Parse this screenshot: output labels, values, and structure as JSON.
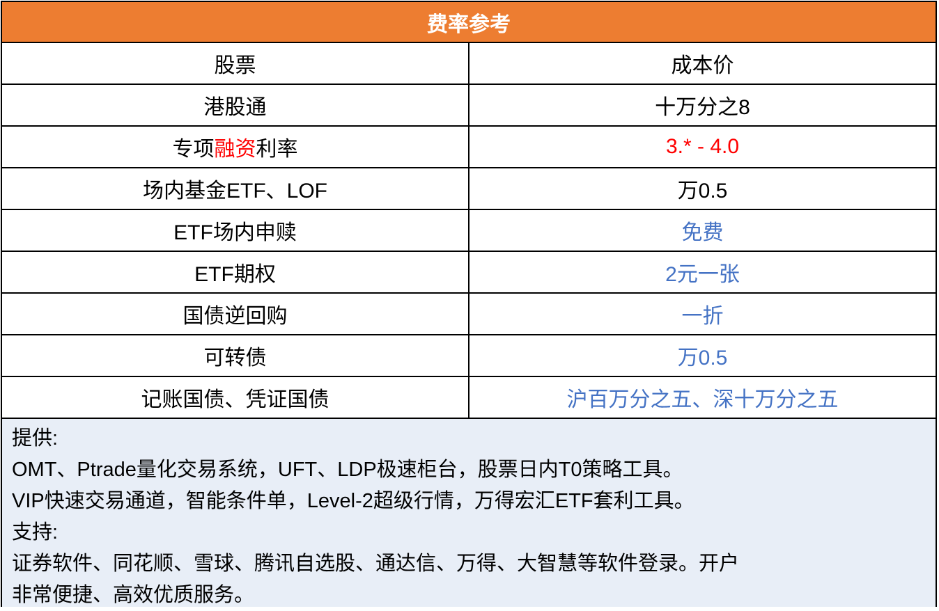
{
  "title": "费率参考",
  "header": {
    "col1": "股票",
    "col2": "成本价"
  },
  "rows": [
    {
      "name": "港股通",
      "value": "十万分之8",
      "value_color": "black"
    },
    {
      "name_parts": [
        "专项",
        "融资",
        "利率"
      ],
      "value": "3.* - 4.0",
      "value_color": "red"
    },
    {
      "name": "场内基金ETF、LOF",
      "value": "万0.5",
      "value_color": "black"
    },
    {
      "name": "ETF场内申赎",
      "value": "免费",
      "value_color": "blue"
    },
    {
      "name": "ETF期权",
      "value": "2元一张",
      "value_color": "blue"
    },
    {
      "name": "国债逆回购",
      "value": "一折",
      "value_color": "blue"
    },
    {
      "name": "可转债",
      "value": "万0.5",
      "value_color": "blue"
    },
    {
      "name": "记账国债、凭证国债",
      "value": "沪百万分之五、深十万分之五",
      "value_color": "blue"
    }
  ],
  "footer": {
    "lines": [
      "提供:",
      "OMT、Ptrade量化交易系统，UFT、LDP极速柜台，股票日内T0策略工具。",
      "VIP快速交易通道，智能条件单，Level-2超级行情，万得宏汇ETF套利工具。",
      "支持:",
      "证券软件、同花顺、雪球、腾讯自选股、通达信、万得、大智慧等软件登录。开户",
      "非常便捷、高效优质服务。"
    ]
  },
  "colors": {
    "header_bg": "#ED7D31",
    "footer_bg": "#E8EEF7",
    "red": "#FF0000",
    "blue": "#4472C4"
  }
}
